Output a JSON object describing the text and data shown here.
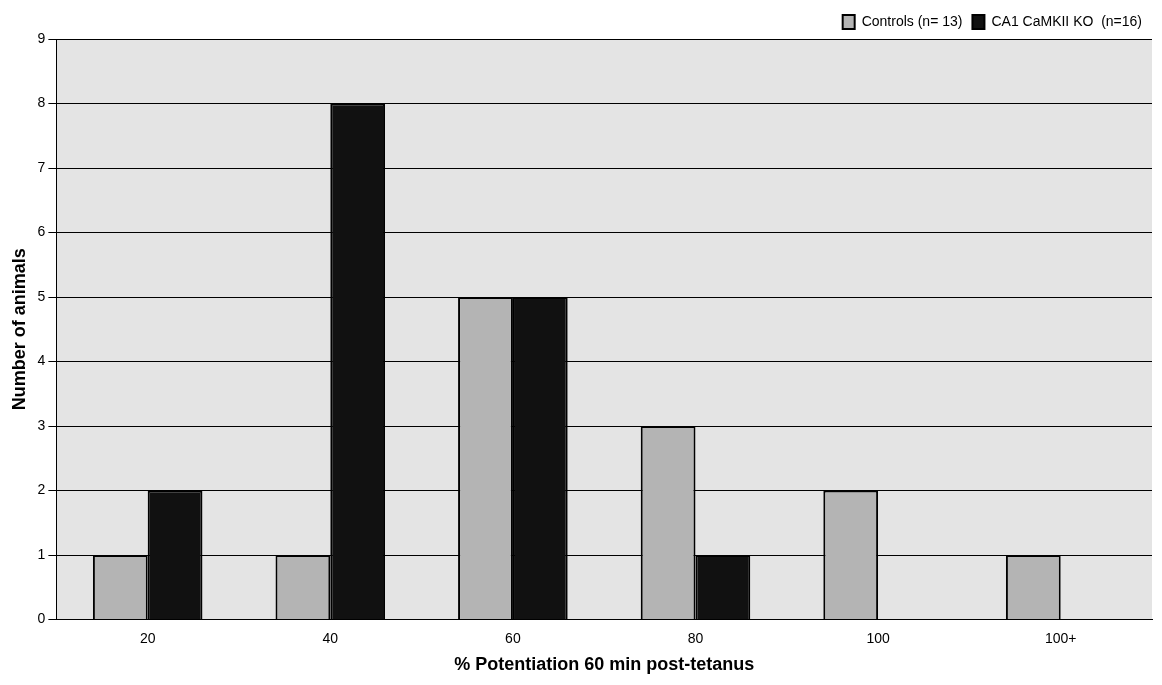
{
  "chart_data": {
    "type": "bar",
    "xlabel": "% Potentiation 60 min post-tetanus",
    "ylabel": "Number of animals",
    "categories": [
      "20",
      "40",
      "60",
      "80",
      "100",
      "100+"
    ],
    "series": [
      {
        "name": "Controls (n= 13)",
        "color": "#b4b4b4",
        "values": [
          1,
          1,
          5,
          3,
          2,
          1
        ]
      },
      {
        "name": "CA1 CaMKII KO  (n=16)",
        "color": "#111111",
        "values": [
          2,
          8,
          5,
          1,
          0,
          0
        ]
      }
    ],
    "ylim": [
      0,
      9
    ],
    "yticks": [
      0,
      1,
      2,
      3,
      4,
      5,
      6,
      7,
      8,
      9
    ],
    "grid": "y",
    "legend": "top right"
  }
}
